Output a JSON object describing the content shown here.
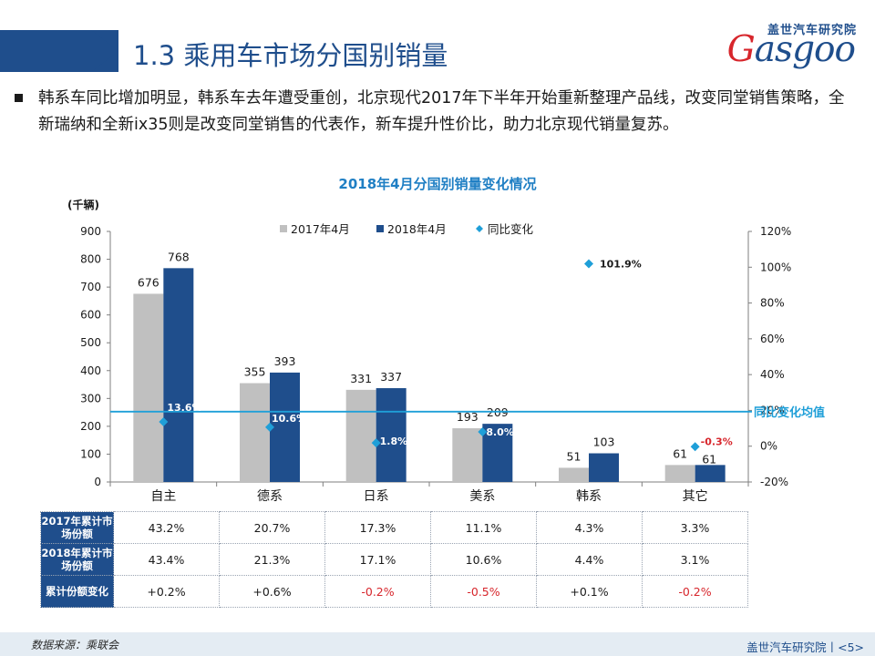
{
  "header": {
    "title": "1.3 乘用车市场分国别销量",
    "logo_cn": "盖世汽车研究院",
    "logo_en": "Gasgoo"
  },
  "bullet": {
    "text": "韩系车同比增加明显，韩系车去年遭受重创，北京现代2017年下半年开始重新整理产品线，改变同堂销售策略，全新瑞纳和全新ix35则是改变同堂销售的代表作，新车提升性价比，助力北京现代销量复苏。"
  },
  "chart_data": {
    "type": "bar",
    "title": "2018年4月分国别销量变化情况",
    "ylabel": "(千辆)",
    "categories": [
      "自主",
      "德系",
      "日系",
      "美系",
      "韩系",
      "其它"
    ],
    "series": [
      {
        "name": "2017年4月",
        "values": [
          676,
          355,
          331,
          193,
          51,
          61
        ],
        "color": "#c0c0c0"
      },
      {
        "name": "2018年4月",
        "values": [
          768,
          393,
          337,
          209,
          103,
          61
        ],
        "color": "#1f4e8c"
      },
      {
        "name": "同比变化",
        "type": "scatter",
        "axis": "right",
        "values": [
          13.6,
          10.6,
          1.8,
          8.0,
          101.9,
          -0.3
        ],
        "labels": [
          "13.6%",
          "10.6%",
          "1.8%",
          "8.0%",
          "101.9%",
          "-0.3%"
        ],
        "color": "#1f9fd8"
      }
    ],
    "ylim": [
      0,
      900
    ],
    "yticks": [
      "0",
      "100",
      "200",
      "300",
      "400",
      "500",
      "600",
      "700",
      "800",
      "900"
    ],
    "y2lim": [
      -20,
      120
    ],
    "y2ticks": [
      "-20%",
      "0%",
      "20%",
      "40%",
      "60%",
      "80%",
      "100%",
      "120%"
    ],
    "reference_line": {
      "label": "同比变化均值",
      "value": 19.3,
      "axis": "right",
      "color": "#1f9fd8"
    },
    "legend": "top-center",
    "grid": false
  },
  "share_table": {
    "rows": [
      {
        "header": "2017年累计市场份额",
        "values": [
          "43.2%",
          "20.7%",
          "17.3%",
          "11.1%",
          "4.3%",
          "3.3%"
        ]
      },
      {
        "header": "2018年累计市场份额",
        "values": [
          "43.4%",
          "21.3%",
          "17.1%",
          "10.6%",
          "4.4%",
          "3.1%"
        ]
      },
      {
        "header": "累计份额变化",
        "values": [
          "+0.2%",
          "+0.6%",
          "-0.2%",
          "-0.5%",
          "+0.1%",
          "-0.2%"
        ]
      }
    ],
    "negative_color": "#d7262c"
  },
  "footer": {
    "source": "数据来源：乘联会",
    "org": "盖世汽车研究院丨<5>"
  }
}
